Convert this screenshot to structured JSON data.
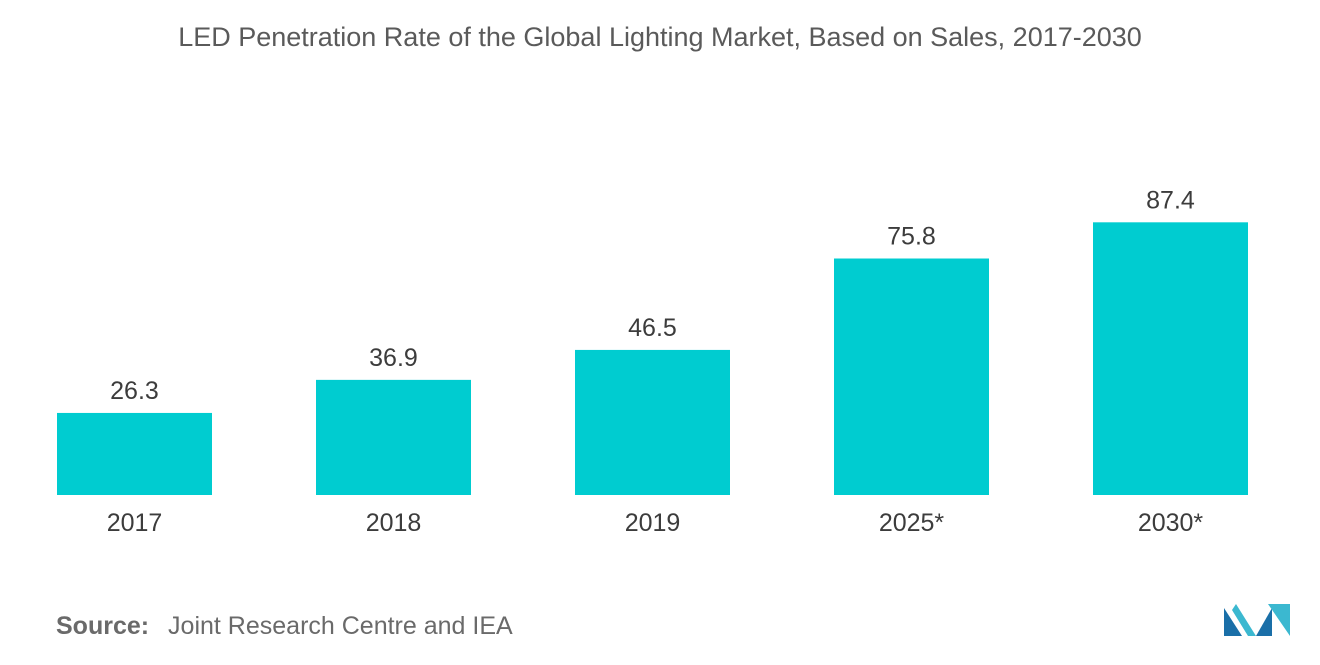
{
  "chart_data": {
    "type": "bar",
    "title": "LED Penetration Rate of the Global Lighting Market, Based on Sales, 2017-2030",
    "categories": [
      "2017",
      "2018",
      "2019",
      "2025*",
      "2030*"
    ],
    "values": [
      26.3,
      36.9,
      46.5,
      75.8,
      87.4
    ],
    "data_labels": [
      "26.3",
      "36.9",
      "46.5",
      "75.8",
      "87.4"
    ],
    "xlabel": "",
    "ylabel": "",
    "ylim": [
      0,
      100
    ],
    "grid": false,
    "legend": "none",
    "bar_color": "#00ccd0"
  },
  "source": {
    "label": "Source:",
    "text": "Joint Research Centre and IEA"
  },
  "logo": {
    "icon": "company-logo-icon",
    "colors": [
      "#1a6fa8",
      "#3bb8d0"
    ]
  }
}
